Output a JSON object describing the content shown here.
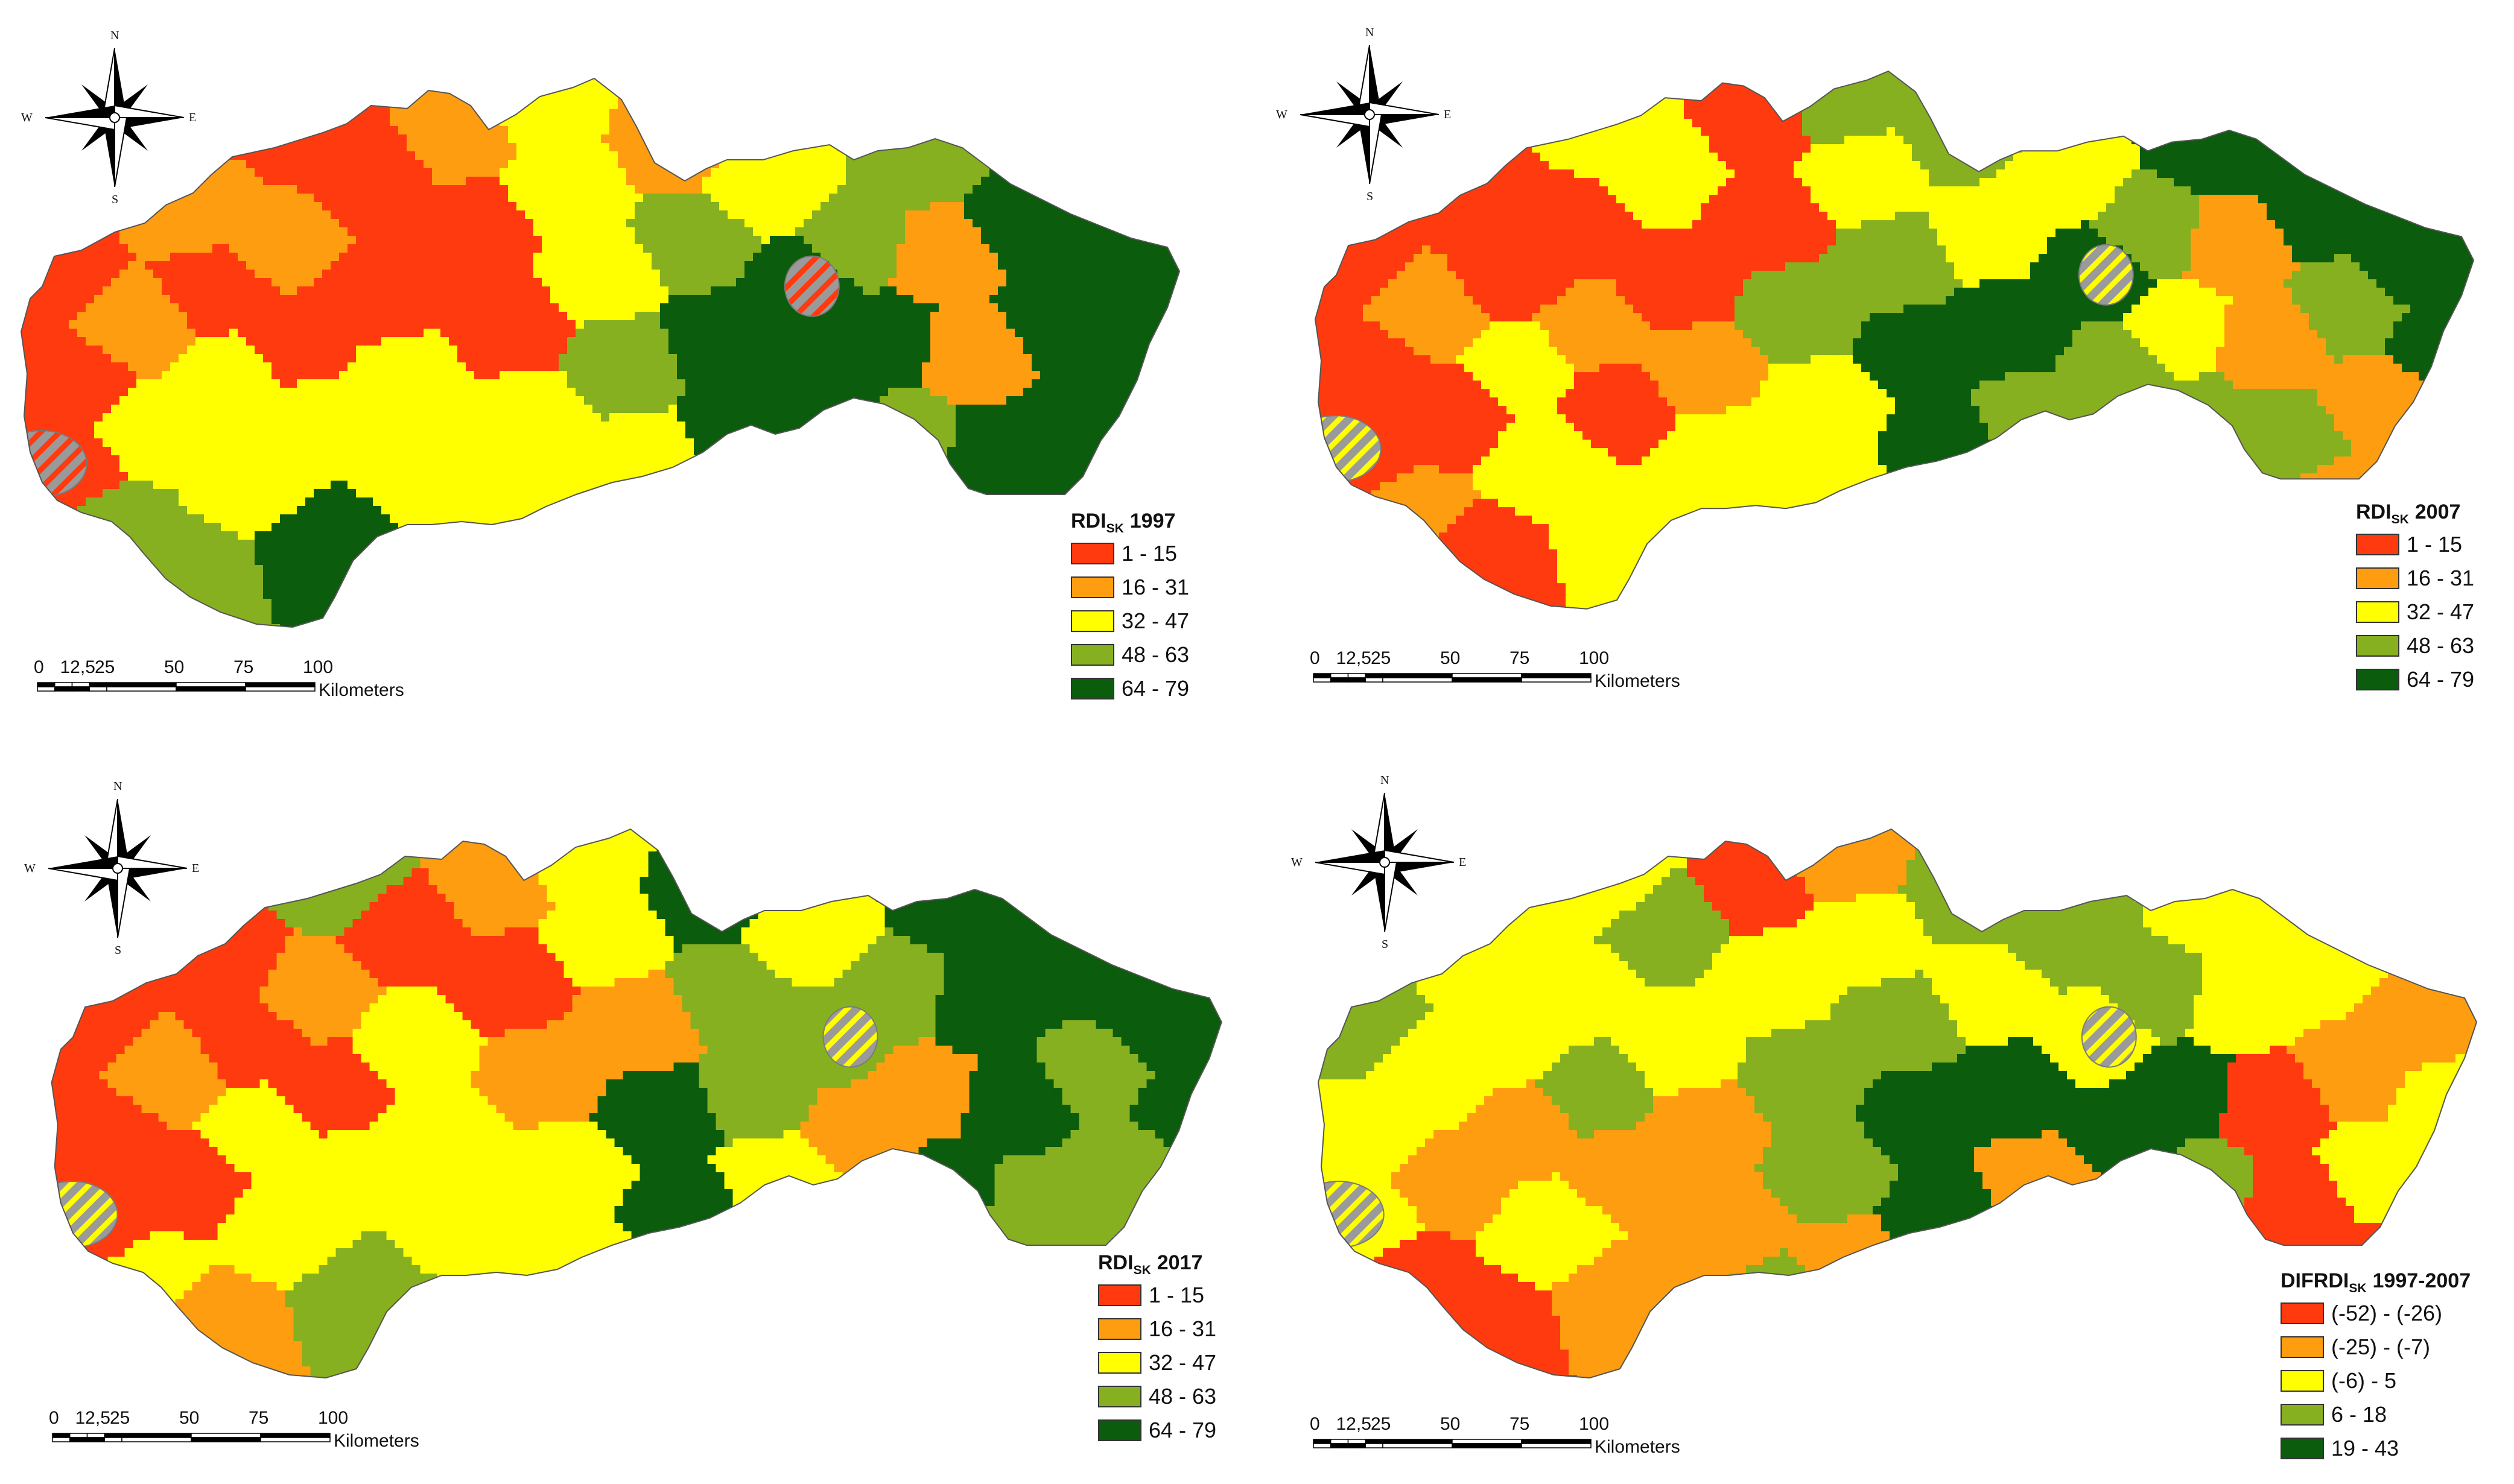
{
  "compass": {
    "north": "N",
    "south": "S",
    "west": "W",
    "east": "E"
  },
  "scalebar": {
    "ticks": [
      "0",
      "12,5",
      "25",
      "50",
      "75",
      "100"
    ],
    "unit": "Kilometers"
  },
  "colors": {
    "c1": "#ff3a0e",
    "c2": "#ff9d10",
    "c3": "#ffff00",
    "c4": "#86b01f",
    "c5": "#0b5c0c",
    "hatch_bg": "#9a9a9a",
    "boundary": "#7a7a7a"
  },
  "panels": [
    {
      "id": "rdi-1997",
      "title_main": "RDI",
      "title_sub": "SK",
      "title_tail": "1997",
      "legend": [
        "1 - 15",
        "16 - 31",
        "32 - 47",
        "48 - 63",
        "64 - 79"
      ]
    },
    {
      "id": "rdi-2007",
      "title_main": "RDI",
      "title_sub": "SK",
      "title_tail": "2007",
      "legend": [
        "1 - 15",
        "16 - 31",
        "32 - 47",
        "48 - 63",
        "64 - 79"
      ]
    },
    {
      "id": "rdi-2017",
      "title_main": "RDI",
      "title_sub": "SK",
      "title_tail": "2017",
      "legend": [
        "1 - 15",
        "16 - 31",
        "32 - 47",
        "48 - 63",
        "64 - 79"
      ]
    },
    {
      "id": "difrdi-1997-2007",
      "title_main": "DIFRDI",
      "title_sub": "SK",
      "title_tail": "1997-2007",
      "legend": [
        "(-52) - (-26)",
        "(-25) - (-7)",
        "(-6) - 5",
        "6 - 18",
        "19 - 43"
      ]
    }
  ]
}
